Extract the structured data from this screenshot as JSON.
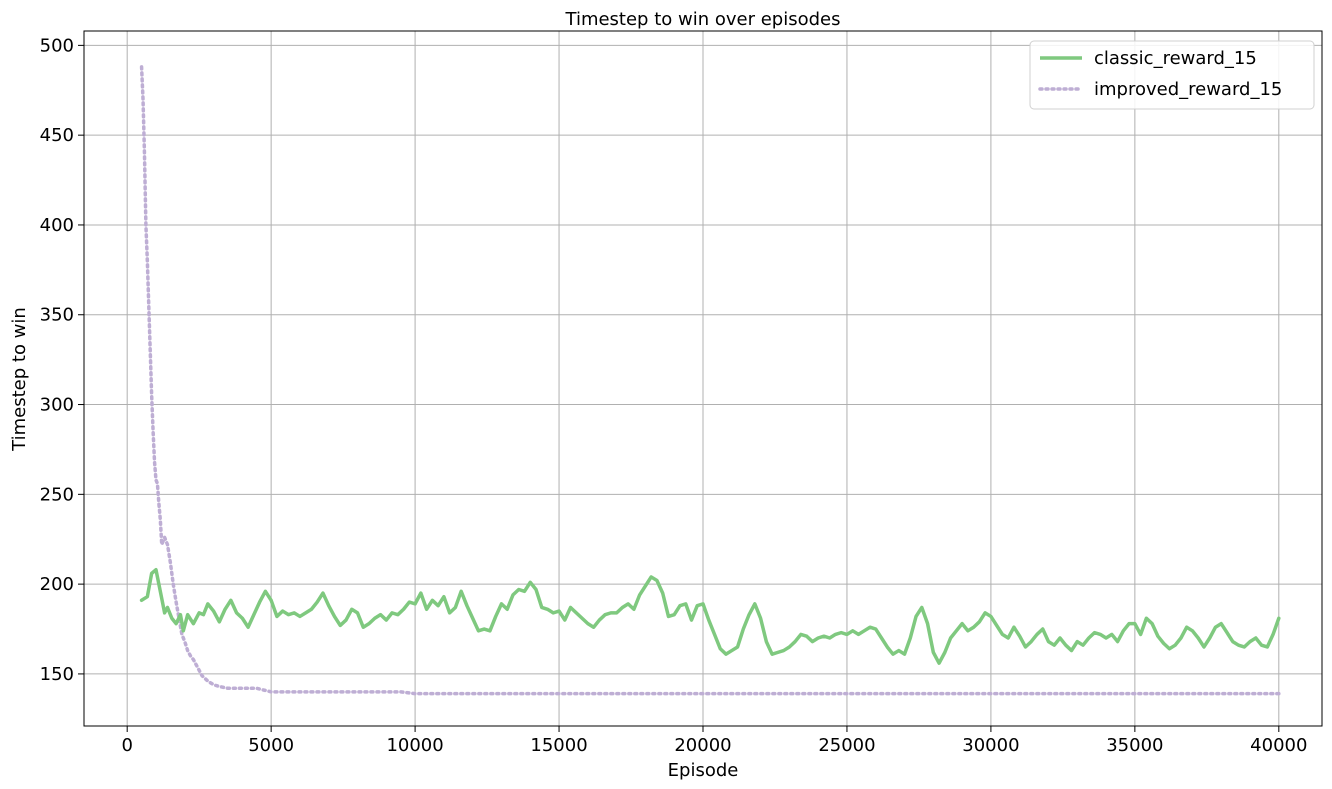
{
  "chart_data": {
    "type": "line",
    "title": "Timestep to win over episodes",
    "xlabel": "Episode",
    "ylabel": "Timestep to win",
    "xlim": [
      -1500,
      41500
    ],
    "ylim": [
      121,
      508
    ],
    "xticks": [
      0,
      5000,
      10000,
      15000,
      20000,
      25000,
      30000,
      35000,
      40000
    ],
    "yticks": [
      150,
      200,
      250,
      300,
      350,
      400,
      450,
      500
    ],
    "grid": true,
    "legend_position": "top-right",
    "series": [
      {
        "name": "classic_reward_15",
        "color": "#7fc97f",
        "style": "solid",
        "x": [
          500,
          700,
          850,
          1000,
          1150,
          1300,
          1400,
          1550,
          1700,
          1850,
          1950,
          2100,
          2300,
          2500,
          2650,
          2800,
          3000,
          3200,
          3400,
          3600,
          3800,
          4000,
          4200,
          4400,
          4600,
          4800,
          5000,
          5200,
          5400,
          5600,
          5800,
          6000,
          6200,
          6400,
          6600,
          6800,
          7000,
          7200,
          7400,
          7600,
          7800,
          8000,
          8200,
          8400,
          8600,
          8800,
          9000,
          9200,
          9400,
          9600,
          9800,
          10000,
          10200,
          10400,
          10600,
          10800,
          11000,
          11200,
          11400,
          11600,
          11800,
          12000,
          12200,
          12400,
          12600,
          12800,
          13000,
          13200,
          13400,
          13600,
          13800,
          14000,
          14200,
          14400,
          14600,
          14800,
          15000,
          15200,
          15400,
          15600,
          15800,
          16000,
          16200,
          16400,
          16600,
          16800,
          17000,
          17200,
          17400,
          17600,
          17800,
          18000,
          18200,
          18400,
          18600,
          18800,
          19000,
          19200,
          19400,
          19600,
          19800,
          20000,
          20200,
          20400,
          20600,
          20800,
          21000,
          21200,
          21400,
          21600,
          21800,
          22000,
          22200,
          22400,
          22600,
          22800,
          23000,
          23200,
          23400,
          23600,
          23800,
          24000,
          24200,
          24400,
          24600,
          24800,
          25000,
          25200,
          25400,
          25600,
          25800,
          26000,
          26200,
          26400,
          26600,
          26800,
          27000,
          27200,
          27400,
          27600,
          27800,
          28000,
          28200,
          28400,
          28600,
          28800,
          29000,
          29200,
          29400,
          29600,
          29800,
          30000,
          30200,
          30400,
          30600,
          30800,
          31000,
          31200,
          31400,
          31600,
          31800,
          32000,
          32200,
          32400,
          32600,
          32800,
          33000,
          33200,
          33400,
          33600,
          33800,
          34000,
          34200,
          34400,
          34600,
          34800,
          35000,
          35200,
          35400,
          35600,
          35800,
          36000,
          36200,
          36400,
          36600,
          36800,
          37000,
          37200,
          37400,
          37600,
          37800,
          38000,
          38200,
          38400,
          38600,
          38800,
          39000,
          39200,
          39400,
          39600,
          39800,
          40000
        ],
        "y": [
          191,
          193,
          206,
          208,
          196,
          184,
          187,
          181,
          178,
          183,
          174,
          183,
          178,
          184,
          183,
          189,
          185,
          179,
          186,
          191,
          184,
          181,
          176,
          183,
          190,
          196,
          191,
          182,
          185,
          183,
          184,
          182,
          184,
          186,
          190,
          195,
          188,
          182,
          177,
          180,
          186,
          184,
          176,
          178,
          181,
          183,
          180,
          184,
          183,
          186,
          190,
          189,
          195,
          186,
          191,
          188,
          193,
          184,
          187,
          196,
          188,
          181,
          174,
          175,
          174,
          182,
          189,
          186,
          194,
          197,
          196,
          201,
          197,
          187,
          186,
          184,
          185,
          180,
          187,
          184,
          181,
          178,
          176,
          180,
          183,
          184,
          184,
          187,
          189,
          186,
          194,
          199,
          204,
          202,
          195,
          182,
          183,
          188,
          189,
          180,
          188,
          189,
          180,
          172,
          164,
          161,
          163,
          165,
          175,
          183,
          189,
          181,
          168,
          161,
          162,
          163,
          165,
          168,
          172,
          171,
          168,
          170,
          171,
          170,
          172,
          173,
          172,
          174,
          172,
          174,
          176,
          175,
          170,
          165,
          161,
          163,
          161,
          170,
          182,
          187,
          178,
          162,
          156,
          162,
          170,
          174,
          178,
          174,
          176,
          179,
          184,
          182,
          177,
          172,
          170,
          176,
          171,
          165,
          168,
          172,
          175,
          168,
          166,
          170,
          166,
          163,
          168,
          166,
          170,
          173,
          172,
          170,
          172,
          168,
          174,
          178,
          178,
          172,
          181,
          178,
          171,
          167,
          164,
          166,
          170,
          176,
          174,
          170,
          165,
          170,
          176,
          178,
          173,
          168,
          166,
          165,
          168,
          170,
          166,
          165,
          172,
          181
        ]
      },
      {
        "name": "improved_reward_15",
        "color": "#beaed4",
        "style": "dotted",
        "x": [
          500,
          550,
          600,
          650,
          700,
          750,
          800,
          850,
          900,
          950,
          1000,
          1050,
          1100,
          1150,
          1200,
          1300,
          1400,
          1500,
          1600,
          1700,
          1800,
          1900,
          2000,
          2100,
          2200,
          2300,
          2400,
          2500,
          2600,
          2800,
          3000,
          3200,
          3500,
          4000,
          4500,
          5000,
          6000,
          7000,
          8000,
          9000,
          9500,
          10000,
          11000,
          12000,
          14000,
          16000,
          18000,
          20000,
          22000,
          24000,
          26000,
          28000,
          30000,
          32000,
          34000,
          36000,
          38000,
          40000
        ],
        "y": [
          488,
          470,
          440,
          400,
          380,
          355,
          330,
          305,
          285,
          268,
          258,
          256,
          245,
          236,
          222,
          226,
          222,
          212,
          200,
          190,
          181,
          172,
          168,
          163,
          160,
          158,
          155,
          152,
          149,
          146,
          144,
          143,
          142,
          142,
          142,
          140,
          140,
          140,
          140,
          140,
          140,
          139,
          139,
          139,
          139,
          139,
          139,
          139,
          139,
          139,
          139,
          139,
          139,
          139,
          139,
          139,
          139,
          139
        ]
      }
    ]
  }
}
